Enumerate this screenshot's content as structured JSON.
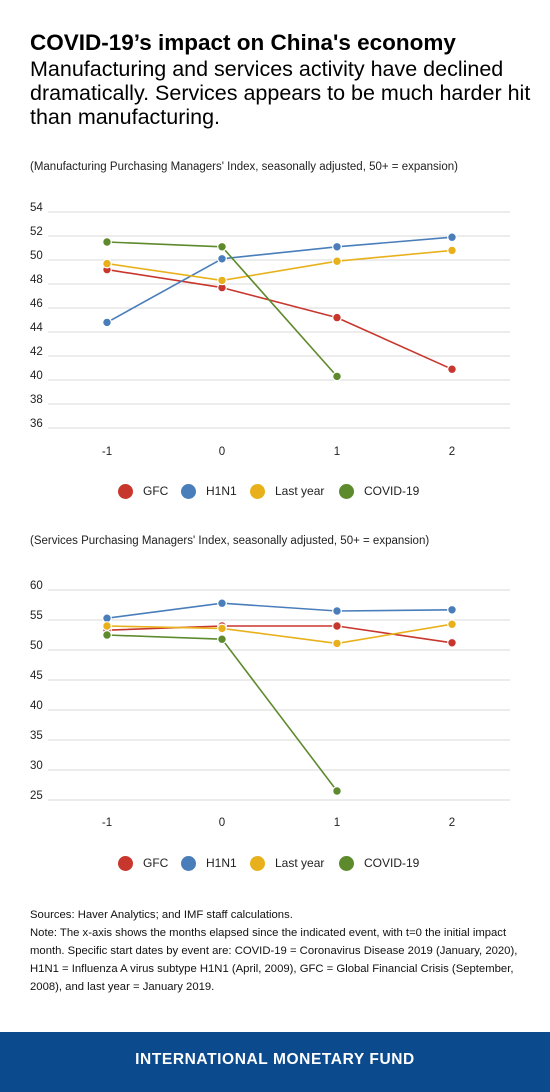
{
  "header": {
    "title": "COVID-19’s impact on China's economy",
    "subtitle": "Manufacturing and services activity have declined dramatically. Services appears to be much harder hit than manufacturing."
  },
  "chart_data": [
    {
      "type": "line",
      "caption": "(Manufacturing Purchasing Managers' Index, seasonally adjusted, 50+ = expansion)",
      "x": [
        -1,
        0,
        1,
        2
      ],
      "x_tick_labels": [
        "-1",
        "0",
        "1",
        "2"
      ],
      "ylim": [
        35,
        55
      ],
      "y_ticks": [
        36,
        38,
        40,
        42,
        44,
        46,
        48,
        50,
        52,
        54
      ],
      "grid": true,
      "series": [
        {
          "name": "GFC",
          "color": "#c8372d",
          "values": [
            49.2,
            47.7,
            45.2,
            40.9
          ]
        },
        {
          "name": "H1N1",
          "color": "#4a7ebb",
          "values": [
            44.8,
            50.1,
            51.1,
            51.9
          ]
        },
        {
          "name": "Last year",
          "color": "#e8b11c",
          "values": [
            49.7,
            48.3,
            49.9,
            50.8
          ]
        },
        {
          "name": "COVID-19",
          "color": "#5e8a2e",
          "values": [
            51.5,
            51.1,
            40.3,
            null
          ]
        }
      ]
    },
    {
      "type": "line",
      "caption": "(Services Purchasing Managers' Index, seasonally adjusted, 50+ = expansion)",
      "x": [
        -1,
        0,
        1,
        2
      ],
      "x_tick_labels": [
        "-1",
        "0",
        "1",
        "2"
      ],
      "ylim": [
        22.5,
        62.5
      ],
      "y_ticks": [
        25,
        30,
        35,
        40,
        45,
        50,
        55,
        60
      ],
      "grid": true,
      "series": [
        {
          "name": "GFC",
          "color": "#c8372d",
          "values": [
            53.3,
            54.0,
            54.0,
            51.2
          ]
        },
        {
          "name": "H1N1",
          "color": "#4a7ebb",
          "values": [
            55.3,
            57.8,
            56.5,
            56.7
          ]
        },
        {
          "name": "Last year",
          "color": "#e8b11c",
          "values": [
            54.0,
            53.6,
            51.1,
            54.3
          ]
        },
        {
          "name": "COVID-19",
          "color": "#5e8a2e",
          "values": [
            52.5,
            51.8,
            26.5,
            null
          ]
        }
      ]
    }
  ],
  "legends": [
    [
      {
        "label": "GFC",
        "color": "#c8372d"
      },
      {
        "label": "H1N1",
        "color": "#4a7ebb"
      },
      {
        "label": "Last year",
        "color": "#e8b11c"
      },
      {
        "label": "COVID-19",
        "color": "#5e8a2e"
      }
    ],
    [
      {
        "label": "GFC",
        "color": "#c8372d"
      },
      {
        "label": "H1N1",
        "color": "#4a7ebb"
      },
      {
        "label": "Last year",
        "color": "#e8b11c"
      },
      {
        "label": "COVID-19",
        "color": "#5e8a2e"
      }
    ]
  ],
  "notes": {
    "sources": "Sources: Haver Analytics; and IMF staff calculations.",
    "note": "Note: The x-axis shows the months elapsed since the indicated event, with t=0 the initial impact month. Specific start dates by event are: COVID-19 = Coronavirus Disease 2019 (January, 2020), H1N1 = Influenza A virus subtype H1N1 (April, 2009), GFC = Global Financial Crisis (September, 2008), and last year = January 2019."
  },
  "footer": {
    "text": "INTERNATIONAL MONETARY FUND",
    "background": "#0c4a8e"
  }
}
